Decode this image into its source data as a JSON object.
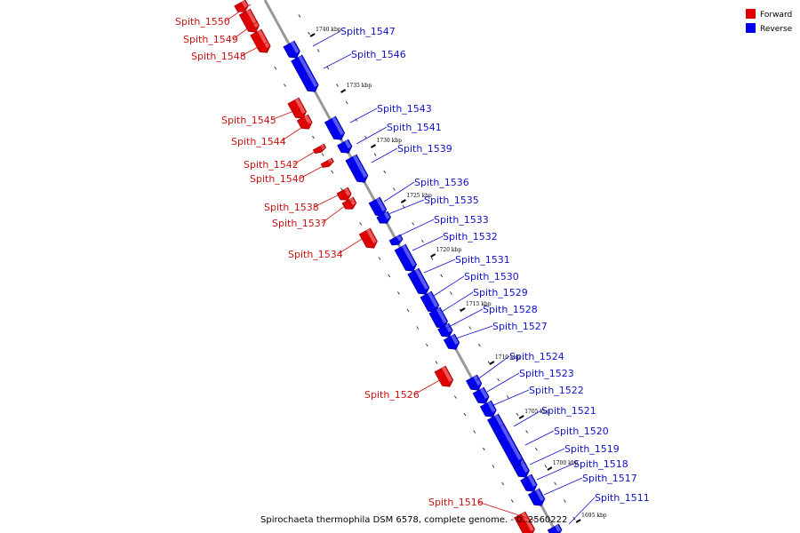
{
  "caption": "Spirochaeta thermophila DSM 6578, complete genome. - 0..2560222",
  "legend": [
    {
      "label": "Forward",
      "color": "#e00000"
    },
    {
      "label": "Reverse",
      "color": "#0000ee"
    }
  ],
  "colors": {
    "forward": "#e00000",
    "reverse": "#0000ee",
    "forward_label": "#cc1111",
    "reverse_label": "#1111cc",
    "axis": "#999999"
  },
  "kbp_marks": [
    "1740 kbp",
    "1735 kbp",
    "1730 kbp",
    "1725 kbp",
    "1720 kbp",
    "1715 kbp",
    "1710 kbp",
    "1705 kbp",
    "1700 kbp",
    "1695 kbp"
  ],
  "genes": [
    {
      "name": "Spith_1550",
      "strand": "forward"
    },
    {
      "name": "Spith_1549",
      "strand": "forward"
    },
    {
      "name": "Spith_1548",
      "strand": "forward"
    },
    {
      "name": "Spith_1547",
      "strand": "reverse"
    },
    {
      "name": "Spith_1546",
      "strand": "reverse"
    },
    {
      "name": "Spith_1545",
      "strand": "forward"
    },
    {
      "name": "Spith_1544",
      "strand": "forward"
    },
    {
      "name": "Spith_1543",
      "strand": "reverse"
    },
    {
      "name": "Spith_1542",
      "strand": "forward"
    },
    {
      "name": "Spith_1541",
      "strand": "reverse"
    },
    {
      "name": "Spith_1540",
      "strand": "forward"
    },
    {
      "name": "Spith_1539",
      "strand": "reverse"
    },
    {
      "name": "Spith_1538",
      "strand": "forward"
    },
    {
      "name": "Spith_1537",
      "strand": "forward"
    },
    {
      "name": "Spith_1536",
      "strand": "reverse"
    },
    {
      "name": "Spith_1535",
      "strand": "reverse"
    },
    {
      "name": "Spith_1534",
      "strand": "forward"
    },
    {
      "name": "Spith_1533",
      "strand": "reverse"
    },
    {
      "name": "Spith_1532",
      "strand": "reverse"
    },
    {
      "name": "Spith_1531",
      "strand": "reverse"
    },
    {
      "name": "Spith_1530",
      "strand": "reverse"
    },
    {
      "name": "Spith_1529",
      "strand": "reverse"
    },
    {
      "name": "Spith_1528",
      "strand": "reverse"
    },
    {
      "name": "Spith_1527",
      "strand": "reverse"
    },
    {
      "name": "Spith_1526",
      "strand": "forward"
    },
    {
      "name": "Spith_1524",
      "strand": "reverse"
    },
    {
      "name": "Spith_1523",
      "strand": "reverse"
    },
    {
      "name": "Spith_1522",
      "strand": "reverse"
    },
    {
      "name": "Spith_1521",
      "strand": "reverse"
    },
    {
      "name": "Spith_1520",
      "strand": "reverse"
    },
    {
      "name": "Spith_1519",
      "strand": "reverse"
    },
    {
      "name": "Spith_1518",
      "strand": "reverse"
    },
    {
      "name": "Spith_1517",
      "strand": "reverse"
    },
    {
      "name": "Spith_1516",
      "strand": "forward"
    },
    {
      "name": "Spith_1511",
      "strand": "reverse"
    }
  ]
}
